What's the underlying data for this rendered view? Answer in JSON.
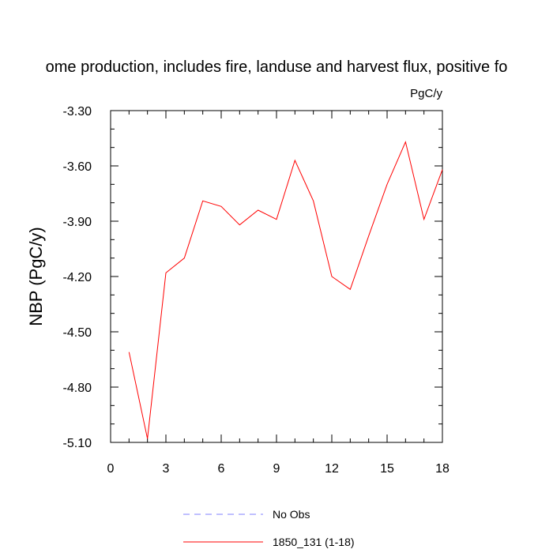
{
  "chart_data": {
    "type": "line",
    "title": "ome production, includes fire, landuse and harvest flux, positive fo",
    "units": "PgC/y",
    "xlabel": "",
    "ylabel": "NBP  (PgC/y)",
    "xlim": [
      0,
      18
    ],
    "ylim": [
      -5.1,
      -3.3
    ],
    "xticks": [
      0,
      3,
      6,
      9,
      12,
      15,
      18
    ],
    "xtick_labels": [
      "0",
      "3",
      "6",
      "9",
      "12",
      "15",
      "18"
    ],
    "yticks": [
      -3.3,
      -3.6,
      -3.9,
      -4.2,
      -4.5,
      -4.8,
      -5.1
    ],
    "ytick_labels": [
      "-3.30",
      "-3.60",
      "-3.90",
      "-4.20",
      "-4.50",
      "-4.80",
      "-5.10"
    ],
    "grid": false,
    "legend_position": "bottom",
    "series": [
      {
        "name": "No Obs",
        "color": "#8080ff",
        "dash": "dashed",
        "x": [],
        "y": []
      },
      {
        "name": "1850_131 (1-18)",
        "color": "#ff0000",
        "dash": "solid",
        "x": [
          1,
          2,
          3,
          4,
          5,
          6,
          7,
          8,
          9,
          10,
          11,
          12,
          13,
          14,
          15,
          16,
          17,
          18
        ],
        "y": [
          -4.61,
          -5.08,
          -4.18,
          -4.1,
          -3.79,
          -3.82,
          -3.92,
          -3.84,
          -3.89,
          -3.57,
          -3.79,
          -4.2,
          -4.27,
          -3.98,
          -3.7,
          -3.47,
          -3.89,
          -3.62
        ]
      }
    ]
  }
}
